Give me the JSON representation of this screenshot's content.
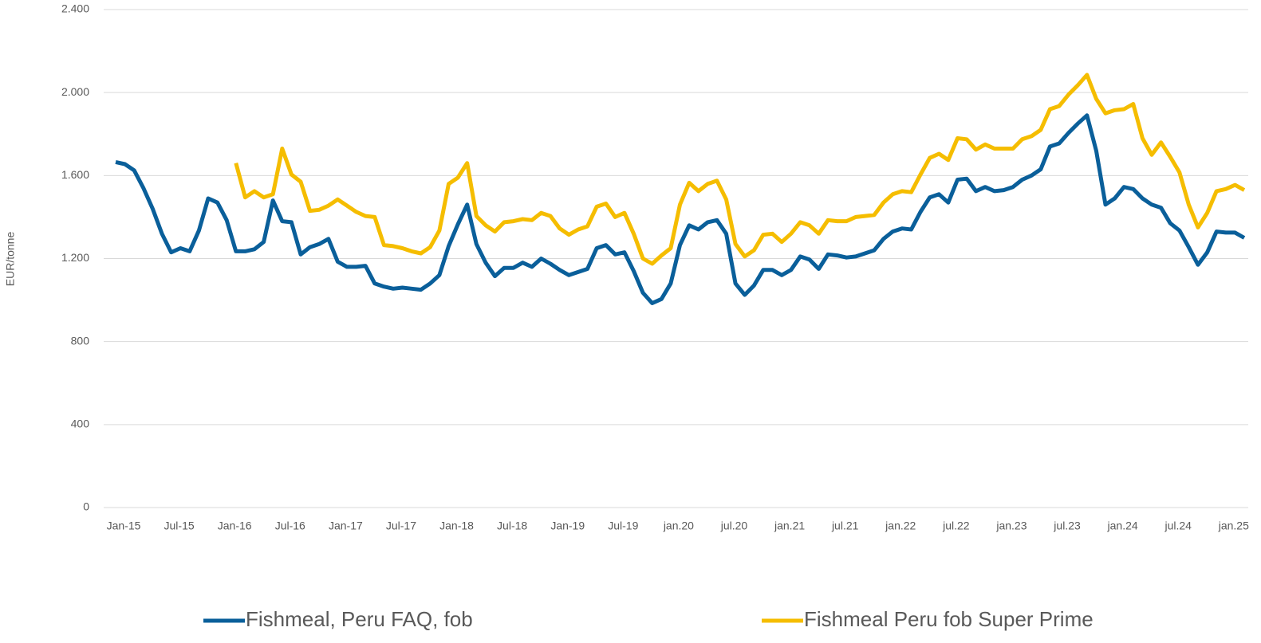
{
  "chart_data": {
    "type": "line",
    "y_label": "EUR/tonne",
    "categories": [
      "Jan-15",
      null,
      null,
      null,
      null,
      null,
      "Jul-15",
      null,
      null,
      null,
      null,
      null,
      "Jan-16",
      null,
      null,
      null,
      null,
      null,
      "Jul-16",
      null,
      null,
      null,
      null,
      null,
      "Jan-17",
      null,
      null,
      null,
      null,
      null,
      "Jul-17",
      null,
      null,
      null,
      null,
      null,
      "Jan-18",
      null,
      null,
      null,
      null,
      null,
      "Jul-18",
      null,
      null,
      null,
      null,
      null,
      "Jan-19",
      null,
      null,
      null,
      null,
      null,
      "Jul-19",
      null,
      null,
      null,
      null,
      null,
      "jan.20",
      null,
      null,
      null,
      null,
      null,
      "jul.20",
      null,
      null,
      null,
      null,
      null,
      "jan.21",
      null,
      null,
      null,
      null,
      null,
      "jul.21",
      null,
      null,
      null,
      null,
      null,
      "jan.22",
      null,
      null,
      null,
      null,
      null,
      "jul.22",
      null,
      null,
      null,
      null,
      null,
      "jan.23",
      null,
      null,
      null,
      null,
      null,
      "jul.23",
      null,
      null,
      null,
      null,
      null,
      "jan.24",
      null,
      null,
      null,
      null,
      null,
      "jul.24",
      null,
      null,
      null,
      null,
      null,
      "jan.25",
      null,
      null
    ],
    "series": [
      {
        "name": "Fishmeal, Peru FAQ, fob",
        "color": "#0a5f9a",
        "values": [
          1665,
          1655,
          1625,
          1540,
          1440,
          1320,
          1230,
          1250,
          1235,
          1335,
          1490,
          1470,
          1385,
          1235,
          1235,
          1245,
          1280,
          1480,
          1380,
          1375,
          1220,
          1255,
          1270,
          1295,
          1185,
          1160,
          1160,
          1165,
          1080,
          1065,
          1055,
          1060,
          1055,
          1050,
          1080,
          1120,
          1260,
          1365,
          1460,
          1270,
          1180,
          1115,
          1155,
          1155,
          1180,
          1160,
          1200,
          1175,
          1145,
          1120,
          1135,
          1150,
          1250,
          1265,
          1220,
          1230,
          1140,
          1035,
          985,
          1005,
          1080,
          1265,
          1360,
          1340,
          1375,
          1385,
          1320,
          1080,
          1025,
          1070,
          1145,
          1145,
          1120,
          1145,
          1210,
          1195,
          1150,
          1220,
          1215,
          1205,
          1210,
          1225,
          1240,
          1295,
          1330,
          1345,
          1340,
          1425,
          1495,
          1510,
          1470,
          1580,
          1585,
          1525,
          1545,
          1525,
          1530,
          1545,
          1580,
          1600,
          1630,
          1740,
          1755,
          1805,
          1850,
          1890,
          1720,
          1460,
          1490,
          1545,
          1535,
          1490,
          1460,
          1445,
          1370,
          1335,
          1255,
          1170,
          1230,
          1330,
          1325,
          1325,
          1300
        ]
      },
      {
        "name": "Fishmeal Peru fob Super Prime",
        "color": "#f5bd00",
        "values": [
          null,
          null,
          null,
          null,
          null,
          null,
          null,
          null,
          null,
          null,
          null,
          null,
          null,
          1660,
          1495,
          1525,
          1495,
          1510,
          1730,
          1605,
          1570,
          1430,
          1435,
          1455,
          1485,
          1455,
          1425,
          1405,
          1400,
          1265,
          1260,
          1250,
          1235,
          1225,
          1255,
          1335,
          1560,
          1590,
          1660,
          1405,
          1360,
          1330,
          1375,
          1380,
          1390,
          1385,
          1420,
          1405,
          1345,
          1315,
          1340,
          1355,
          1450,
          1465,
          1400,
          1420,
          1320,
          1200,
          1175,
          1215,
          1250,
          1460,
          1565,
          1525,
          1560,
          1575,
          1485,
          1270,
          1210,
          1240,
          1315,
          1320,
          1280,
          1320,
          1375,
          1360,
          1320,
          1385,
          1380,
          1380,
          1400,
          1405,
          1410,
          1470,
          1510,
          1525,
          1520,
          1605,
          1685,
          1705,
          1675,
          1780,
          1775,
          1725,
          1750,
          1730,
          1730,
          1730,
          1775,
          1790,
          1820,
          1920,
          1935,
          1990,
          2035,
          2085,
          1970,
          1900,
          1915,
          1920,
          1945,
          1780,
          1700,
          1760,
          1690,
          1615,
          1460,
          1350,
          1420,
          1525,
          1535,
          1555,
          1530
        ]
      }
    ],
    "ylim": [
      0,
      2400
    ],
    "yticks": [
      0,
      {
        "value": 400,
        "label": "400"
      },
      800,
      {
        "value": 1200,
        "label": "1.200"
      },
      {
        "value": 1600,
        "label": "1.600"
      },
      {
        "value": 2000,
        "label": "2.000"
      },
      {
        "value": 2400,
        "label": "2.400"
      }
    ],
    "grid": true,
    "legend": "bottom"
  }
}
